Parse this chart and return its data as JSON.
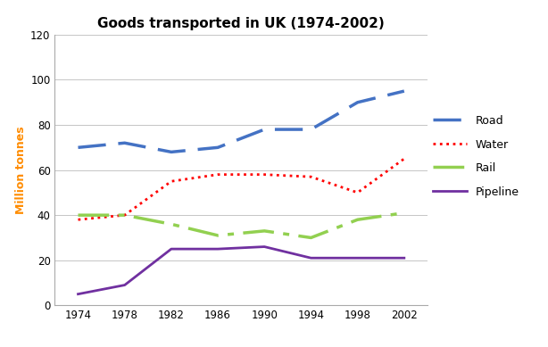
{
  "title": "Goods transported in UK (1974-2002)",
  "ylabel": "Million tonnes",
  "years": [
    1974,
    1978,
    1982,
    1986,
    1990,
    1994,
    1998,
    2002
  ],
  "road": [
    70,
    72,
    68,
    70,
    78,
    78,
    90,
    95
  ],
  "water": [
    38,
    40,
    55,
    58,
    58,
    57,
    50,
    65
  ],
  "rail": [
    40,
    40,
    36,
    31,
    33,
    30,
    38,
    41
  ],
  "pipeline": [
    5,
    9,
    25,
    25,
    26,
    21,
    21,
    21
  ],
  "road_color": "#4472C4",
  "water_color": "#FF0000",
  "rail_color": "#92D050",
  "pipeline_color": "#7030A0",
  "ylim": [
    0,
    120
  ],
  "yticks": [
    0,
    20,
    40,
    60,
    80,
    100,
    120
  ],
  "title_fontsize": 11,
  "ylabel_fontsize": 9,
  "legend_labels": [
    "Road",
    "Water",
    "Rail",
    "Pipeline"
  ],
  "background_color": "#FFFFFF",
  "grid_color": "#BBBBBB"
}
